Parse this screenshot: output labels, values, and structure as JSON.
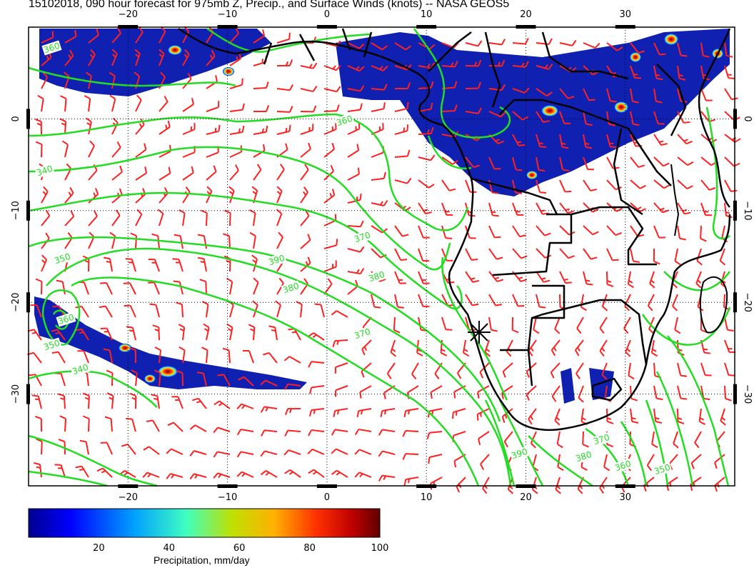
{
  "title": "15102018, 090 hour forecast for 975mb Z, Precip., and Surface Winds (knots) -- NASA GEOS5",
  "map": {
    "lon_range": [
      -30,
      41
    ],
    "lat_range": [
      -40,
      10
    ],
    "lon_ticks": [
      -20,
      -10,
      0,
      10,
      20,
      30
    ],
    "lat_ticks": [
      0,
      -10,
      -20,
      -30
    ],
    "lon_tick_labels": [
      "−20",
      "−10",
      "0",
      "10",
      "20",
      "30"
    ],
    "lat_tick_labels": [
      "0",
      "−10",
      "−20",
      "−30"
    ],
    "contour_labels": [
      "360",
      "350",
      "340",
      "360",
      "370",
      "380",
      "390",
      "380",
      "370",
      "360",
      "350",
      "340",
      "390",
      "380",
      "370",
      "360",
      "350"
    ],
    "contour_color": "#22dd22",
    "barb_color": "#ff2020",
    "coast_color": "#000000",
    "marker_symbol": "star-marker"
  },
  "colorbar": {
    "label": "Precipitation, mm/day",
    "ticks": [
      "20",
      "40",
      "60",
      "80",
      "100"
    ],
    "range": [
      0,
      100
    ]
  }
}
